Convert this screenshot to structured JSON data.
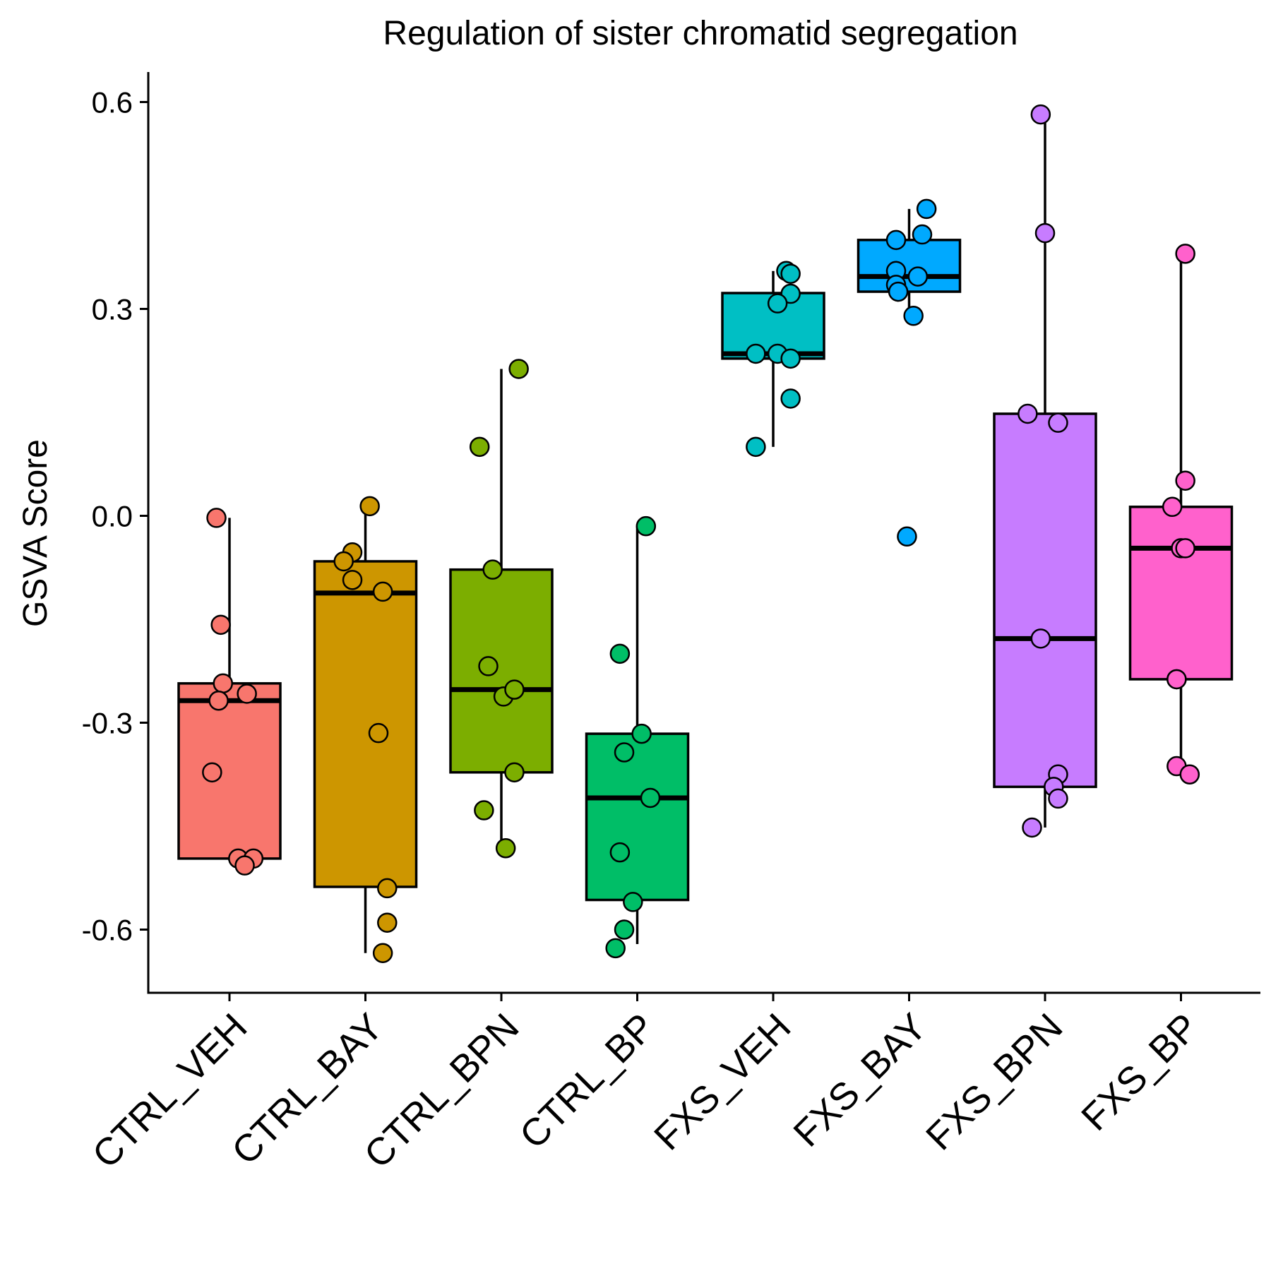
{
  "chart_data": {
    "type": "boxplot",
    "title": "Regulation of sister chromatid segregation",
    "xlabel": "",
    "ylabel": "GSVA Score",
    "ylim": [
      -0.69,
      0.64
    ],
    "yticks": [
      0.6,
      0.3,
      0.0,
      -0.3,
      -0.6
    ],
    "ytick_labels": [
      "0.6",
      "0.3",
      "0.0",
      "-0.3",
      "-0.6"
    ],
    "grid": false,
    "legend": "none",
    "categories": [
      "CTRL_VEH",
      "CTRL_BAY",
      "CTRL_BPN",
      "CTRL_BP",
      "FXS_VEH",
      "FXS_BAY",
      "FXS_BPN",
      "FXS_BP"
    ],
    "series": [
      {
        "color": "#F8766D",
        "box": {
          "lower_whisker": -0.5,
          "q1": -0.497,
          "median": -0.268,
          "q3": -0.243,
          "upper_whisker": -0.003
        },
        "points": [
          [
            -0.03,
            -0.003
          ],
          [
            -0.02,
            -0.158
          ],
          [
            -0.015,
            -0.243
          ],
          [
            -0.025,
            -0.268
          ],
          [
            0.04,
            -0.258
          ],
          [
            -0.04,
            -0.372
          ],
          [
            0.02,
            -0.497
          ],
          [
            0.055,
            -0.497
          ],
          [
            0.035,
            -0.507
          ]
        ]
      },
      {
        "color": "#CD9600",
        "box": {
          "lower_whisker": -0.634,
          "q1": -0.538,
          "median": -0.112,
          "q3": -0.066,
          "upper_whisker": 0.014
        },
        "points": [
          [
            0.01,
            0.014
          ],
          [
            -0.03,
            -0.053
          ],
          [
            -0.05,
            -0.066
          ],
          [
            -0.03,
            -0.093
          ],
          [
            0.04,
            -0.11
          ],
          [
            0.03,
            -0.315
          ],
          [
            0.05,
            -0.54
          ],
          [
            0.05,
            -0.59
          ],
          [
            0.04,
            -0.634
          ]
        ]
      },
      {
        "color": "#7CAE00",
        "box": {
          "lower_whisker": -0.482,
          "q1": -0.372,
          "median": -0.252,
          "q3": -0.078,
          "upper_whisker": 0.213
        },
        "points": [
          [
            0.04,
            0.213
          ],
          [
            -0.05,
            0.1
          ],
          [
            -0.02,
            -0.078
          ],
          [
            -0.03,
            -0.218
          ],
          [
            0.005,
            -0.262
          ],
          [
            0.03,
            -0.252
          ],
          [
            0.03,
            -0.372
          ],
          [
            -0.04,
            -0.427
          ],
          [
            0.01,
            -0.482
          ]
        ]
      },
      {
        "color": "#00BE67",
        "box": {
          "lower_whisker": -0.621,
          "q1": -0.557,
          "median": -0.409,
          "q3": -0.316,
          "upper_whisker": -0.015
        },
        "points": [
          [
            0.02,
            -0.015
          ],
          [
            -0.04,
            -0.2
          ],
          [
            0.01,
            -0.316
          ],
          [
            -0.03,
            -0.343
          ],
          [
            0.03,
            -0.409
          ],
          [
            -0.04,
            -0.488
          ],
          [
            -0.01,
            -0.56
          ],
          [
            -0.03,
            -0.6
          ],
          [
            -0.05,
            -0.627
          ]
        ]
      },
      {
        "color": "#00BFC4",
        "box": {
          "lower_whisker": 0.1,
          "q1": 0.228,
          "median": 0.235,
          "q3": 0.323,
          "upper_whisker": 0.355
        },
        "points": [
          [
            0.03,
            0.355
          ],
          [
            0.04,
            0.322
          ],
          [
            0.01,
            0.308
          ],
          [
            -0.04,
            0.235
          ],
          [
            0.01,
            0.235
          ],
          [
            0.04,
            0.228
          ],
          [
            0.04,
            0.17
          ],
          [
            -0.04,
            0.1
          ],
          [
            0.04,
            0.351
          ]
        ]
      },
      {
        "color": "#00A9FF",
        "box": {
          "lower_whisker": 0.29,
          "q1": 0.325,
          "median": 0.347,
          "q3": 0.4,
          "upper_whisker": 0.445
        },
        "points": [
          [
            0.04,
            0.445
          ],
          [
            0.03,
            0.408
          ],
          [
            -0.03,
            0.4
          ],
          [
            -0.03,
            0.355
          ],
          [
            0.02,
            0.347
          ],
          [
            -0.03,
            0.335
          ],
          [
            -0.025,
            0.325
          ],
          [
            0.01,
            0.29
          ],
          [
            -0.005,
            -0.03
          ]
        ]
      },
      {
        "color": "#C77CFF",
        "box": {
          "lower_whisker": -0.452,
          "q1": -0.393,
          "median": -0.178,
          "q3": 0.148,
          "upper_whisker": 0.582
        },
        "points": [
          [
            -0.01,
            0.582
          ],
          [
            0.0,
            0.41
          ],
          [
            -0.04,
            0.148
          ],
          [
            0.03,
            0.135
          ],
          [
            -0.01,
            -0.178
          ],
          [
            0.03,
            -0.375
          ],
          [
            0.02,
            -0.393
          ],
          [
            0.03,
            -0.41
          ],
          [
            -0.03,
            -0.452
          ]
        ]
      },
      {
        "color": "#FF61CC",
        "box": {
          "lower_whisker": -0.375,
          "q1": -0.237,
          "median": -0.047,
          "q3": 0.013,
          "upper_whisker": 0.38
        },
        "points": [
          [
            0.01,
            0.38
          ],
          [
            0.01,
            0.051
          ],
          [
            -0.02,
            0.013
          ],
          [
            0.0,
            -0.047
          ],
          [
            0.01,
            -0.047
          ],
          [
            -0.01,
            -0.237
          ],
          [
            -0.01,
            -0.237
          ],
          [
            -0.01,
            -0.363
          ],
          [
            0.02,
            -0.375
          ]
        ]
      }
    ]
  }
}
